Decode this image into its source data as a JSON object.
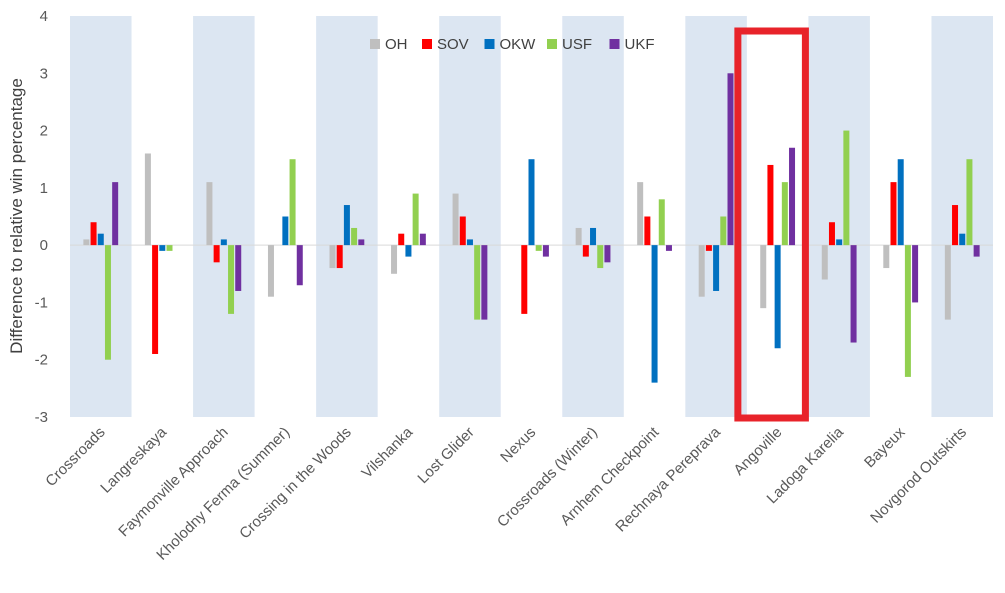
{
  "chart_data": {
    "type": "bar",
    "title": "",
    "xlabel": "",
    "ylabel": "Difference to relative win percentage",
    "ylim": [
      -3,
      4
    ],
    "yticks": [
      -3,
      -2,
      -1,
      0,
      1,
      2,
      3,
      4
    ],
    "legend_position": "top",
    "categories": [
      "Crossroads",
      "Langreskaya",
      "Faymonville Approach",
      "Kholodny Ferma (Summer)",
      "Crossing in the Woods",
      "Vilshanka",
      "Lost Glider",
      "Nexus",
      "Crossroads (Winter)",
      "Arnhem Checkpoint",
      "Rechnaya Pereprava",
      "Angoville",
      "Ladoga Karelia",
      "Bayeux",
      "Novgorod Outskirts"
    ],
    "series": [
      {
        "name": "OH",
        "color": "#bfbfbf",
        "values": [
          0.1,
          1.6,
          1.1,
          -0.9,
          -0.4,
          -0.5,
          0.9,
          0.0,
          0.3,
          1.1,
          -0.9,
          -1.1,
          -0.6,
          -0.4,
          -1.3
        ]
      },
      {
        "name": "SOV",
        "color": "#ff0000",
        "values": [
          0.4,
          -1.9,
          -0.3,
          0.0,
          -0.4,
          0.2,
          0.5,
          -1.2,
          -0.2,
          0.5,
          -0.1,
          1.4,
          0.4,
          1.1,
          0.7
        ]
      },
      {
        "name": "OKW",
        "color": "#0070c0",
        "values": [
          0.2,
          -0.1,
          0.1,
          0.5,
          0.7,
          -0.2,
          0.1,
          1.5,
          0.3,
          -2.4,
          -0.8,
          -1.8,
          0.1,
          1.5,
          0.2
        ]
      },
      {
        "name": "USF",
        "color": "#92d050",
        "values": [
          -2.0,
          -0.1,
          -1.2,
          1.5,
          0.3,
          0.9,
          -1.3,
          -0.1,
          -0.4,
          0.8,
          0.5,
          1.1,
          2.0,
          -2.3,
          1.5
        ]
      },
      {
        "name": "UKF",
        "color": "#7030a0",
        "values": [
          1.1,
          0.0,
          -0.8,
          -0.7,
          0.1,
          0.2,
          -1.3,
          -0.2,
          -0.3,
          -0.1,
          3.0,
          1.7,
          -1.7,
          -1.0,
          -0.2
        ]
      }
    ],
    "band_color": "#dce6f2",
    "highlight": {
      "category": "Angoville",
      "color": "#e8232a"
    }
  }
}
